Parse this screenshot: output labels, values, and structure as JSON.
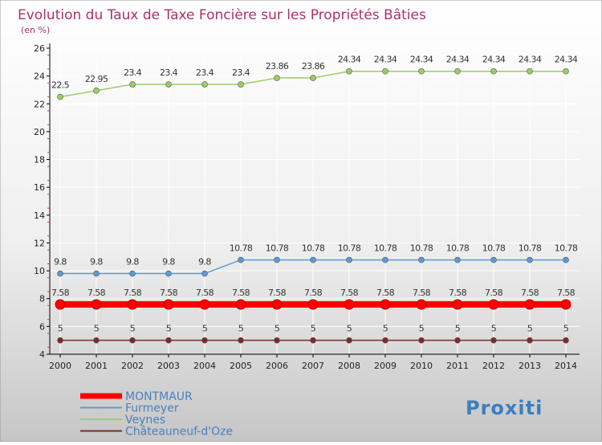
{
  "colors": {
    "background_top": "#ffffff",
    "background_bottom": "#c8c8c8",
    "title": "#b0306a",
    "axis": "#000000",
    "grid": "#ffffff",
    "legend_text": "#4a7fc0"
  },
  "logo": {
    "text": "Proxiti"
  },
  "chart_data": {
    "type": "line",
    "title": "Evolution du Taux de Taxe Foncière sur les Propriétés Bâties",
    "subtitle": "(en %)",
    "x": [
      2000,
      2001,
      2002,
      2003,
      2004,
      2005,
      2006,
      2007,
      2008,
      2009,
      2010,
      2011,
      2012,
      2013,
      2014
    ],
    "ylim": [
      4,
      26
    ],
    "yticks": [
      4,
      6,
      8,
      10,
      12,
      14,
      16,
      18,
      20,
      22,
      24,
      26
    ],
    "grid": true,
    "legend_position": "bottom-left",
    "series": [
      {
        "name": "MONTMAUR",
        "color": "#ff0000",
        "values": [
          7.58,
          7.58,
          7.58,
          7.58,
          7.58,
          7.58,
          7.58,
          7.58,
          7.58,
          7.58,
          7.58,
          7.58,
          7.58,
          7.58,
          7.58
        ],
        "labels": [
          "7.58",
          "7.58",
          "7.58",
          "7.58",
          "7.58",
          "7.58",
          "7.58",
          "7.58",
          "7.58",
          "7.58",
          "7.58",
          "7.58",
          "7.58",
          "7.58",
          "7.58"
        ]
      },
      {
        "name": "Furmeyer",
        "color": "#5b9bd5",
        "values": [
          9.8,
          9.8,
          9.8,
          9.8,
          9.8,
          10.78,
          10.78,
          10.78,
          10.78,
          10.78,
          10.78,
          10.78,
          10.78,
          10.78,
          10.78
        ],
        "labels": [
          "9.8",
          "9.8",
          "9.8",
          "9.8",
          "9.8",
          "10.78",
          "10.78",
          "10.78",
          "10.78",
          "10.78",
          "10.78",
          "10.78",
          "10.78",
          "10.78",
          "10.78"
        ]
      },
      {
        "name": "Veynes",
        "color": "#9ccc65",
        "values": [
          22.5,
          22.95,
          23.4,
          23.4,
          23.4,
          23.4,
          23.86,
          23.86,
          24.34,
          24.34,
          24.34,
          24.34,
          24.34,
          24.34,
          24.34
        ],
        "labels": [
          "22.5",
          "22.95",
          "23.4",
          "23.4",
          "23.4",
          "23.4",
          "23.86",
          "23.86",
          "24.34",
          "24.34",
          "24.34",
          "24.34",
          "24.34",
          "24.34",
          "24.34"
        ]
      },
      {
        "name": "Châteauneuf-d'Oze",
        "color": "#7b2b2b",
        "values": [
          5,
          5,
          5,
          5,
          5,
          5,
          5,
          5,
          5,
          5,
          5,
          5,
          5,
          5,
          5
        ],
        "labels": [
          "5",
          "5",
          "5",
          "5",
          "5",
          "5",
          "5",
          "5",
          "5",
          "5",
          "5",
          "5",
          "5",
          "5",
          "5"
        ]
      }
    ]
  }
}
